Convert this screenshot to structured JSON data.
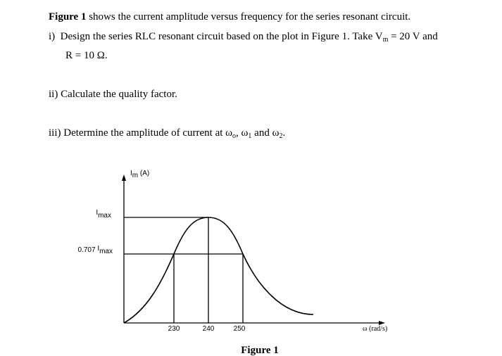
{
  "intro": {
    "bold": "Figure 1",
    "text": " shows the current amplitude versus frequency for the series resonant circuit."
  },
  "q1": {
    "label": "i)",
    "text": "Design the series RLC resonant circuit based on the plot in Figure 1. Take V",
    "sub": "m",
    "text2": " = 20 V and",
    "line2": "R = 10 Ω."
  },
  "q2": {
    "label": "ii)",
    "text": "Calculate the quality factor."
  },
  "q3": {
    "label": "iii)",
    "text": "Determine the amplitude of current at ω",
    "sub0": "o",
    "mid1": ", ω",
    "sub1": "1",
    "mid2": " and ω",
    "sub2": "2",
    "end": "."
  },
  "figure": {
    "y_axis": {
      "symbol": "I",
      "sub": "m",
      "unit": " (A)"
    },
    "x_axis": "ω (rad/s)",
    "imax": {
      "symbol": "I",
      "sub": "max"
    },
    "half": {
      "prefix": "0.707 ",
      "symbol": "I",
      "sub": "max"
    },
    "ticks": [
      "230",
      "240",
      "250"
    ],
    "caption": "Figure 1"
  }
}
